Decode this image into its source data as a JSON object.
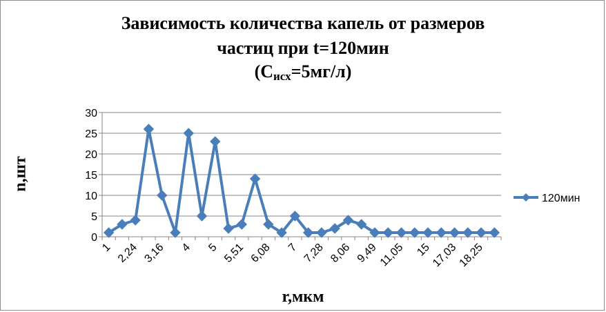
{
  "chart_data": {
    "type": "line",
    "title_line1": "Зависимость количества капель от размеров",
    "title_line2": "частиц при t=120мин",
    "title_line3_prefix": "(C",
    "title_line3_sub": "исх",
    "title_line3_suffix": "=5мг/л)",
    "xlabel": "r,мкм",
    "ylabel": "n,шт",
    "ylim": [
      0,
      30
    ],
    "yticks": [
      0,
      5,
      10,
      15,
      20,
      25,
      30
    ],
    "grid": "horizontal",
    "legend_position": "right",
    "num_points": 30,
    "x_tick_labels": [
      {
        "index": 0,
        "label": "1"
      },
      {
        "index": 2,
        "label": "2,24"
      },
      {
        "index": 4,
        "label": "3,16"
      },
      {
        "index": 6,
        "label": "4"
      },
      {
        "index": 8,
        "label": "5"
      },
      {
        "index": 10,
        "label": "5,51"
      },
      {
        "index": 12,
        "label": "6,08"
      },
      {
        "index": 14,
        "label": "7"
      },
      {
        "index": 16,
        "label": "7,28"
      },
      {
        "index": 18,
        "label": "8,06"
      },
      {
        "index": 20,
        "label": "9,49"
      },
      {
        "index": 22,
        "label": "11,05"
      },
      {
        "index": 24,
        "label": "15"
      },
      {
        "index": 26,
        "label": "17,03"
      },
      {
        "index": 28,
        "label": "18,25"
      }
    ],
    "series": [
      {
        "name": "120мин",
        "color": "#4a7ebb",
        "marker": "diamond",
        "values": [
          1,
          3,
          4,
          26,
          10,
          1,
          25,
          5,
          23,
          2,
          3,
          14,
          3,
          1,
          5,
          1,
          1,
          2,
          4,
          3,
          1,
          1,
          1,
          1,
          1,
          1,
          1,
          1,
          1,
          1
        ]
      }
    ]
  }
}
